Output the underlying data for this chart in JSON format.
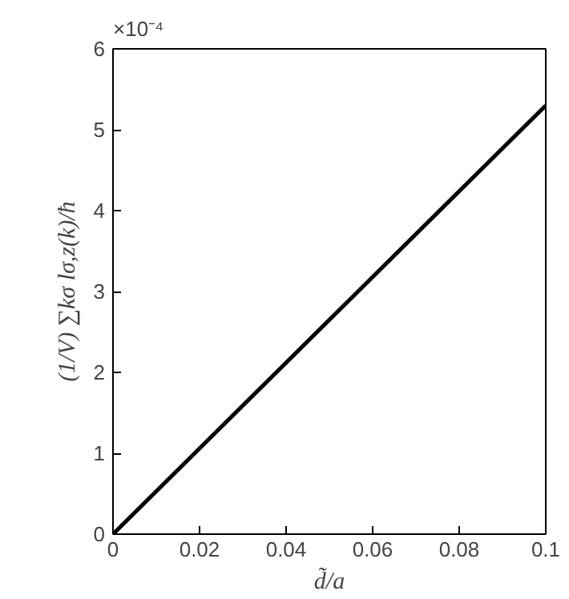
{
  "chart_data": {
    "type": "line",
    "xlabel": "d̃/a",
    "ylabel": "(1/V) ∑kσ lσ,z(k)/ħ",
    "x": [
      0,
      0.1
    ],
    "series": [
      {
        "color": "#000000",
        "values": [
          0,
          5.3
        ]
      }
    ],
    "xlim": [
      0,
      0.1
    ],
    "xticks": [
      0,
      0.02,
      0.04,
      0.06,
      0.08,
      0.1
    ],
    "ylim": [
      0,
      6
    ],
    "yticks": [
      0,
      1,
      2,
      3,
      4,
      5,
      6
    ],
    "annotations": [
      "×10⁻⁴"
    ],
    "grid": false
  }
}
